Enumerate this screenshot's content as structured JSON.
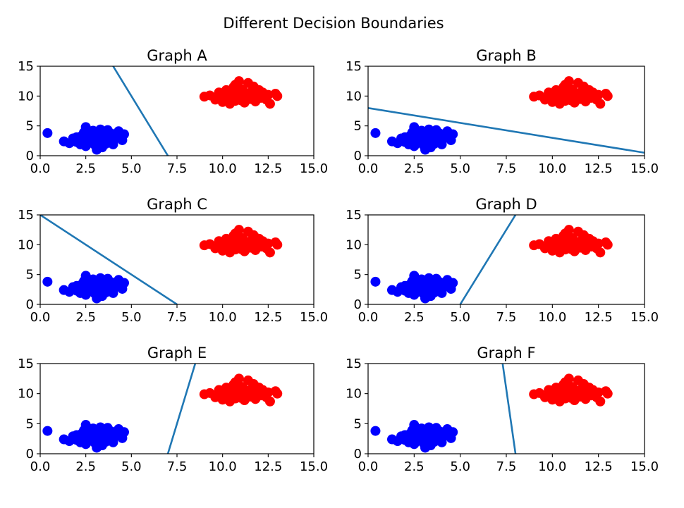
{
  "figure": {
    "suptitle": "Different Decision Boundaries"
  },
  "colors": {
    "class_a": "#0000ff",
    "class_b": "#ff0000",
    "boundary": "#1f77b4"
  },
  "chart_data": [
    {
      "type": "scatter",
      "title": "Graph A",
      "xlim": [
        0,
        15
      ],
      "ylim": [
        0,
        15
      ],
      "xticks": [
        "0.0",
        "2.5",
        "5.0",
        "7.5",
        "10.0",
        "12.5",
        "15.0"
      ],
      "yticks": [
        "0",
        "5",
        "10",
        "15"
      ],
      "boundary": {
        "x": [
          4.0,
          7.0
        ],
        "y": [
          15,
          0
        ]
      }
    },
    {
      "type": "scatter",
      "title": "Graph B",
      "xlim": [
        0,
        15
      ],
      "ylim": [
        0,
        15
      ],
      "xticks": [
        "0.0",
        "2.5",
        "5.0",
        "7.5",
        "10.0",
        "12.5",
        "15.0"
      ],
      "yticks": [
        "0",
        "5",
        "10",
        "15"
      ],
      "boundary": {
        "x": [
          0,
          15
        ],
        "y": [
          8,
          0.5
        ]
      }
    },
    {
      "type": "scatter",
      "title": "Graph C",
      "xlim": [
        0,
        15
      ],
      "ylim": [
        0,
        15
      ],
      "xticks": [
        "0.0",
        "2.5",
        "5.0",
        "7.5",
        "10.0",
        "12.5",
        "15.0"
      ],
      "yticks": [
        "0",
        "5",
        "10",
        "15"
      ],
      "boundary": {
        "x": [
          0,
          7.5
        ],
        "y": [
          15,
          0
        ]
      }
    },
    {
      "type": "scatter",
      "title": "Graph D",
      "xlim": [
        0,
        15
      ],
      "ylim": [
        0,
        15
      ],
      "xticks": [
        "0.0",
        "2.5",
        "5.0",
        "7.5",
        "10.0",
        "12.5",
        "15.0"
      ],
      "yticks": [
        "0",
        "5",
        "10",
        "15"
      ],
      "boundary": {
        "x": [
          5.0,
          8.0
        ],
        "y": [
          0,
          15
        ]
      }
    },
    {
      "type": "scatter",
      "title": "Graph E",
      "xlim": [
        0,
        15
      ],
      "ylim": [
        0,
        15
      ],
      "xticks": [
        "0.0",
        "2.5",
        "5.0",
        "7.5",
        "10.0",
        "12.5",
        "15.0"
      ],
      "yticks": [
        "0",
        "5",
        "10",
        "15"
      ],
      "boundary": {
        "x": [
          7.0,
          8.5
        ],
        "y": [
          0,
          15
        ]
      }
    },
    {
      "type": "scatter",
      "title": "Graph F",
      "xlim": [
        0,
        15
      ],
      "ylim": [
        0,
        15
      ],
      "xticks": [
        "0.0",
        "2.5",
        "5.0",
        "7.5",
        "10.0",
        "12.5",
        "15.0"
      ],
      "yticks": [
        "0",
        "5",
        "10",
        "15"
      ],
      "boundary": {
        "x": [
          7.3,
          8.0
        ],
        "y": [
          15,
          0
        ]
      }
    }
  ],
  "scatter_points": {
    "class_a_blue": [
      [
        0.4,
        3.8
      ],
      [
        1.3,
        2.4
      ],
      [
        1.6,
        2.1
      ],
      [
        1.8,
        2.9
      ],
      [
        2.0,
        3.1
      ],
      [
        2.0,
        2.3
      ],
      [
        2.2,
        1.9
      ],
      [
        2.3,
        3.4
      ],
      [
        2.4,
        2.7
      ],
      [
        2.5,
        4.8
      ],
      [
        2.5,
        1.6
      ],
      [
        2.7,
        3.6
      ],
      [
        2.7,
        2.3
      ],
      [
        2.8,
        3.0
      ],
      [
        2.9,
        4.2
      ],
      [
        3.0,
        1.8
      ],
      [
        3.0,
        2.6
      ],
      [
        3.1,
        1.0
      ],
      [
        3.1,
        3.8
      ],
      [
        3.2,
        2.2
      ],
      [
        3.3,
        4.4
      ],
      [
        3.3,
        3.0
      ],
      [
        3.4,
        1.4
      ],
      [
        3.5,
        2.6
      ],
      [
        3.5,
        3.8
      ],
      [
        3.6,
        2.0
      ],
      [
        3.7,
        4.3
      ],
      [
        3.7,
        3.2
      ],
      [
        3.8,
        2.5
      ],
      [
        3.9,
        3.7
      ],
      [
        4.0,
        1.9
      ],
      [
        4.2,
        3.0
      ],
      [
        4.3,
        4.1
      ],
      [
        4.5,
        2.6
      ],
      [
        4.6,
        3.6
      ],
      [
        2.1,
        2.6
      ],
      [
        2.6,
        2.0
      ],
      [
        3.4,
        4.0
      ],
      [
        2.9,
        3.3
      ],
      [
        3.9,
        2.9
      ],
      [
        2.4,
        3.9
      ],
      [
        3.2,
        2.7
      ]
    ],
    "class_b_red": [
      [
        9.0,
        9.9
      ],
      [
        9.3,
        10.1
      ],
      [
        9.6,
        9.4
      ],
      [
        9.8,
        10.6
      ],
      [
        10.0,
        9.0
      ],
      [
        10.0,
        10.3
      ],
      [
        10.2,
        11.0
      ],
      [
        10.3,
        9.6
      ],
      [
        10.4,
        8.7
      ],
      [
        10.5,
        10.1
      ],
      [
        10.6,
        11.5
      ],
      [
        10.7,
        9.2
      ],
      [
        10.8,
        10.6
      ],
      [
        10.9,
        12.5
      ],
      [
        11.0,
        9.8
      ],
      [
        11.1,
        11.1
      ],
      [
        11.2,
        8.9
      ],
      [
        11.3,
        10.3
      ],
      [
        11.4,
        12.2
      ],
      [
        11.5,
        9.5
      ],
      [
        11.6,
        10.8
      ],
      [
        11.7,
        11.6
      ],
      [
        11.8,
        9.1
      ],
      [
        11.9,
        10.2
      ],
      [
        12.0,
        11.0
      ],
      [
        12.1,
        9.7
      ],
      [
        12.2,
        10.6
      ],
      [
        12.4,
        9.4
      ],
      [
        12.5,
        10.2
      ],
      [
        12.6,
        8.7
      ],
      [
        12.9,
        10.4
      ],
      [
        13.0,
        10.0
      ],
      [
        10.1,
        9.6
      ],
      [
        10.9,
        10.0
      ],
      [
        11.5,
        10.5
      ],
      [
        10.4,
        10.9
      ],
      [
        11.0,
        9.3
      ],
      [
        11.8,
        11.2
      ],
      [
        12.3,
        9.9
      ],
      [
        10.7,
        11.9
      ]
    ]
  }
}
